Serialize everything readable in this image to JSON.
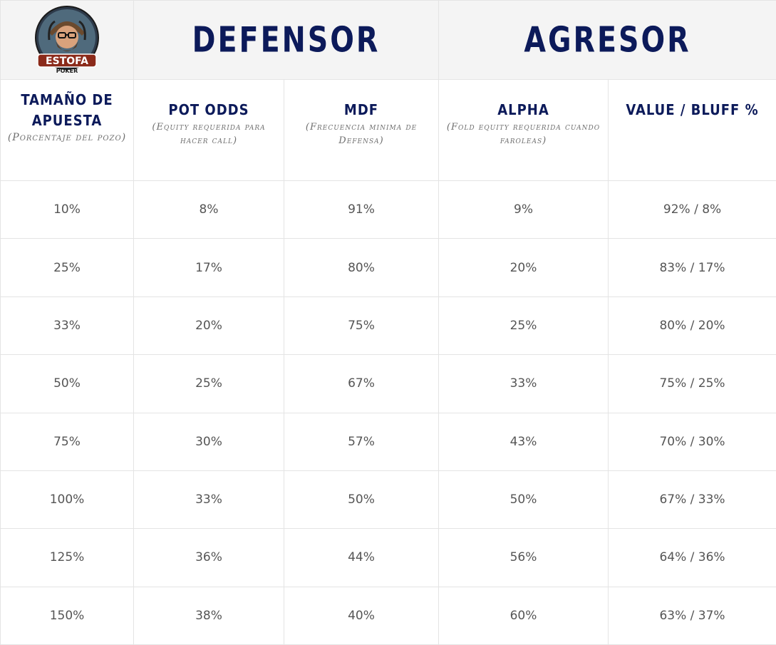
{
  "logo": {
    "text": "ESTOFA",
    "subtext": "POKER"
  },
  "groups": {
    "defensor": "DEFENSOR",
    "agresor": "AGRESOR"
  },
  "columns": [
    {
      "title": "TAMAÑO DE APUESTA",
      "subtitle": "(Porcentaje del pozo)"
    },
    {
      "title": "POT ODDS",
      "subtitle": "(Equity requerida para hacer call)"
    },
    {
      "title": "MDF",
      "subtitle": "(Frecuencia minima de Defensa)"
    },
    {
      "title": "ALPHA",
      "subtitle": "(Fold equity requerida cuando faroleas)"
    },
    {
      "title": "VALUE / BLUFF %",
      "subtitle": ""
    }
  ],
  "rows": [
    [
      "10%",
      "8%",
      "91%",
      "9%",
      "92% / 8%"
    ],
    [
      "25%",
      "17%",
      "80%",
      "20%",
      "83% / 17%"
    ],
    [
      "33%",
      "20%",
      "75%",
      "25%",
      "80% / 20%"
    ],
    [
      "50%",
      "25%",
      "67%",
      "33%",
      "75% / 25%"
    ],
    [
      "75%",
      "30%",
      "57%",
      "43%",
      "70% / 30%"
    ],
    [
      "100%",
      "33%",
      "50%",
      "50%",
      "67% / 33%"
    ],
    [
      "125%",
      "36%",
      "44%",
      "56%",
      "64% / 36%"
    ],
    [
      "150%",
      "38%",
      "40%",
      "60%",
      "63% / 37%"
    ]
  ],
  "colors": {
    "title": "#0c1a5a",
    "text": "#555555",
    "border": "#e4e4e4",
    "header_bg": "#f4f4f4"
  }
}
